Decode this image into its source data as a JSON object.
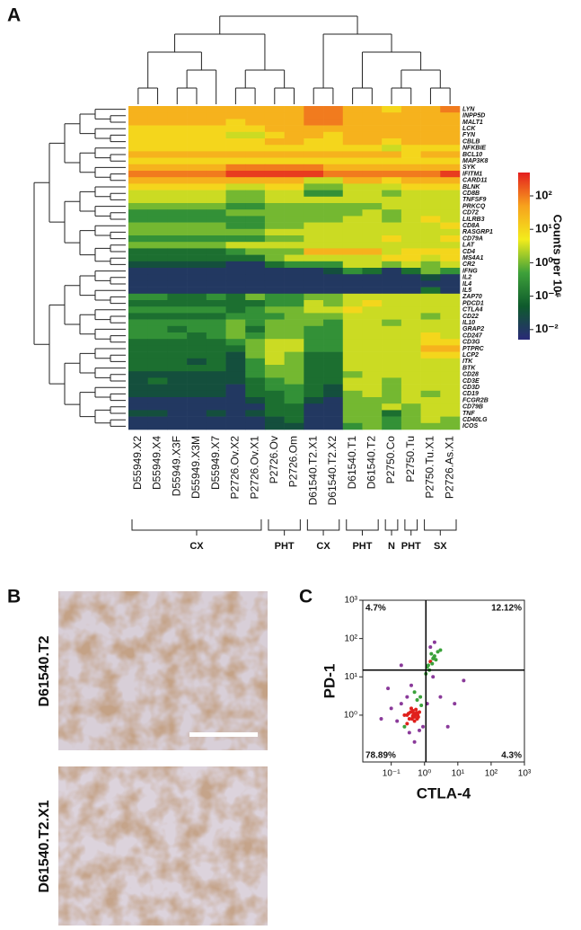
{
  "chart_data": [
    {
      "type": "heatmap",
      "panel": "A",
      "columns": [
        "D55949.X2",
        "D55949.X4",
        "D55949.X3F",
        "D55949.X3M",
        "D55949.X7",
        "P2726.Ov.X2",
        "P2726.Ov.X1",
        "P2726.Ov",
        "P2726.Om",
        "D61540.T2.X1",
        "D61540.T2.X2",
        "D61540.T1",
        "D61540.T2",
        "P2750.Co",
        "P2750.Tu",
        "P2750.Tu.X1",
        "P2726.As.X1"
      ],
      "rows": [
        "LYN",
        "INPP5D",
        "MALT1",
        "LCK",
        "FYN",
        "CBLB",
        "NFKBIE",
        "BCL10",
        "MAP3K8",
        "SYK",
        "IFITM1",
        "CARD11",
        "BLNK",
        "CD8B",
        "TNFSF9",
        "PRKCQ",
        "CD72",
        "LILRB3",
        "CD8A",
        "RASGRP1",
        "CD79A",
        "LAT",
        "CD4",
        "MS4A1",
        "CR2",
        "IFNG",
        "IL2",
        "IL4",
        "IL5",
        "ZAP70",
        "PDCD1",
        "CTLA4",
        "CD22",
        "IL10",
        "GRAP2",
        "CD247",
        "CD3G",
        "PTPRC",
        "LCP2",
        "ITK",
        "BTK",
        "CD28",
        "CD3E",
        "CD3D",
        "CD19",
        "FCGR2B",
        "CD79B",
        "TNF",
        "CD40LG",
        "ICOS"
      ],
      "values": [
        [
          30,
          30,
          30,
          30,
          30,
          30,
          30,
          30,
          30,
          100,
          100,
          30,
          30,
          10,
          30,
          30,
          100
        ],
        [
          30,
          30,
          30,
          30,
          30,
          30,
          30,
          30,
          30,
          100,
          100,
          30,
          30,
          30,
          30,
          30,
          30
        ],
        [
          30,
          30,
          30,
          30,
          30,
          10,
          30,
          30,
          30,
          100,
          100,
          30,
          30,
          30,
          30,
          30,
          30
        ],
        [
          10,
          10,
          10,
          10,
          10,
          10,
          10,
          30,
          30,
          30,
          30,
          30,
          30,
          30,
          30,
          30,
          30
        ],
        [
          10,
          10,
          10,
          10,
          10,
          3,
          3,
          10,
          30,
          30,
          10,
          30,
          30,
          30,
          30,
          30,
          30
        ],
        [
          10,
          10,
          10,
          10,
          10,
          10,
          10,
          30,
          30,
          10,
          10,
          30,
          30,
          10,
          30,
          30,
          30
        ],
        [
          10,
          10,
          10,
          10,
          10,
          10,
          10,
          10,
          10,
          10,
          10,
          10,
          10,
          3,
          10,
          10,
          10
        ],
        [
          30,
          30,
          30,
          30,
          30,
          30,
          30,
          30,
          30,
          30,
          30,
          30,
          30,
          30,
          10,
          30,
          30
        ],
        [
          10,
          10,
          10,
          10,
          10,
          10,
          10,
          10,
          10,
          10,
          10,
          10,
          10,
          10,
          10,
          10,
          10
        ],
        [
          30,
          30,
          30,
          30,
          30,
          100,
          100,
          100,
          100,
          100,
          30,
          30,
          30,
          30,
          30,
          30,
          30
        ],
        [
          100,
          100,
          100,
          100,
          100,
          300,
          300,
          300,
          300,
          300,
          100,
          100,
          100,
          100,
          100,
          100,
          300
        ],
        [
          30,
          30,
          30,
          30,
          30,
          30,
          30,
          30,
          30,
          3,
          3,
          30,
          30,
          10,
          30,
          30,
          30
        ],
        [
          10,
          10,
          10,
          10,
          10,
          3,
          3,
          10,
          10,
          1,
          1,
          3,
          3,
          3,
          10,
          10,
          10
        ],
        [
          3,
          3,
          3,
          3,
          3,
          1,
          1,
          3,
          3,
          0.3,
          0.3,
          3,
          3,
          1,
          3,
          3,
          3
        ],
        [
          3,
          3,
          3,
          3,
          3,
          1,
          1,
          3,
          3,
          3,
          3,
          3,
          3,
          3,
          3,
          3,
          3
        ],
        [
          1,
          1,
          1,
          1,
          1,
          0.3,
          0.3,
          1,
          1,
          1,
          1,
          1,
          1,
          3,
          3,
          3,
          3
        ],
        [
          0.3,
          0.3,
          0.3,
          0.3,
          0.3,
          1,
          1,
          1,
          1,
          1,
          1,
          1,
          3,
          1,
          3,
          3,
          3
        ],
        [
          0.3,
          0.3,
          0.3,
          0.3,
          0.3,
          0.3,
          0.3,
          1,
          1,
          1,
          1,
          3,
          3,
          1,
          3,
          10,
          3
        ],
        [
          1,
          1,
          1,
          1,
          1,
          0.3,
          0.3,
          1,
          1,
          3,
          3,
          3,
          3,
          3,
          3,
          3,
          10
        ],
        [
          1,
          1,
          1,
          1,
          1,
          1,
          1,
          3,
          3,
          3,
          3,
          3,
          3,
          3,
          3,
          3,
          3
        ],
        [
          0.3,
          0.3,
          0.3,
          0.3,
          0.3,
          0.3,
          0.3,
          1,
          1,
          3,
          3,
          3,
          3,
          10,
          3,
          3,
          10
        ],
        [
          1,
          1,
          1,
          1,
          1,
          3,
          3,
          3,
          3,
          3,
          3,
          3,
          3,
          3,
          3,
          3,
          3
        ],
        [
          0.1,
          0.1,
          0.1,
          0.1,
          0.1,
          0.3,
          1,
          1,
          1,
          30,
          30,
          30,
          30,
          3,
          10,
          10,
          10
        ],
        [
          0.1,
          0.1,
          0.1,
          0.1,
          0.1,
          0.1,
          0.1,
          1,
          3,
          3,
          3,
          3,
          3,
          10,
          10,
          3,
          10
        ],
        [
          0.03,
          0.03,
          0.03,
          0.03,
          0.03,
          0.01,
          0.01,
          0.1,
          0.3,
          0.3,
          0.3,
          3,
          3,
          1,
          3,
          1,
          3
        ],
        [
          0.01,
          0.01,
          0.01,
          0.01,
          0.01,
          0.01,
          0.01,
          0.01,
          0.01,
          0.01,
          0.03,
          0.3,
          0.1,
          0.01,
          0.1,
          1,
          0.3
        ],
        [
          0.01,
          0.01,
          0.01,
          0.01,
          0.01,
          0.01,
          0.01,
          0.01,
          0.01,
          0.01,
          0.01,
          0.01,
          0.01,
          0.01,
          0.01,
          0.03,
          0.01
        ],
        [
          0.01,
          0.01,
          0.01,
          0.01,
          0.01,
          0.01,
          0.01,
          0.01,
          0.01,
          0.01,
          0.01,
          0.01,
          0.01,
          0.01,
          0.01,
          0.01,
          0.01
        ],
        [
          0.01,
          0.01,
          0.01,
          0.01,
          0.01,
          0.01,
          0.01,
          0.01,
          0.01,
          0.01,
          0.01,
          0.01,
          0.01,
          0.01,
          0.01,
          0.1,
          0.01
        ],
        [
          0.3,
          0.3,
          0.1,
          0.1,
          0.3,
          0.1,
          1,
          0.3,
          0.3,
          1,
          1,
          3,
          3,
          3,
          3,
          3,
          3
        ],
        [
          0.1,
          0.1,
          0.1,
          0.1,
          0.1,
          0.1,
          0.1,
          0.3,
          0.3,
          3,
          1,
          3,
          10,
          3,
          3,
          3,
          3
        ],
        [
          0.3,
          0.3,
          0.3,
          0.3,
          0.3,
          0.1,
          0.3,
          1,
          1,
          3,
          3,
          10,
          3,
          3,
          3,
          3,
          3
        ],
        [
          0.1,
          0.1,
          0.1,
          0.1,
          0.1,
          0.3,
          0.3,
          0.3,
          1,
          1,
          1,
          3,
          3,
          3,
          3,
          1,
          3
        ],
        [
          0.3,
          0.3,
          0.3,
          0.3,
          0.3,
          1,
          0.3,
          1,
          1,
          1,
          0.3,
          3,
          3,
          1,
          3,
          3,
          3
        ],
        [
          0.3,
          0.3,
          0.1,
          0.3,
          0.3,
          1,
          0.1,
          1,
          1,
          0.3,
          0.3,
          3,
          3,
          3,
          3,
          3,
          3
        ],
        [
          0.3,
          0.3,
          0.3,
          0.1,
          0.3,
          1,
          0.3,
          1,
          1,
          0.3,
          0.3,
          3,
          3,
          3,
          3,
          10,
          3
        ],
        [
          0.1,
          0.1,
          0.1,
          0.1,
          0.1,
          0.3,
          1,
          3,
          3,
          0.3,
          0.3,
          3,
          3,
          3,
          3,
          10,
          10
        ],
        [
          0.1,
          0.1,
          0.1,
          0.1,
          0.1,
          0.1,
          1,
          3,
          3,
          0.3,
          0.3,
          3,
          3,
          3,
          3,
          30,
          30
        ],
        [
          0.1,
          0.1,
          0.1,
          0.1,
          0.1,
          0.03,
          1,
          3,
          1,
          0.1,
          0.1,
          3,
          3,
          3,
          3,
          10,
          10
        ],
        [
          0.1,
          0.1,
          0.1,
          0.03,
          0.1,
          0.03,
          0.3,
          3,
          1,
          0.1,
          0.1,
          3,
          3,
          3,
          3,
          3,
          3
        ],
        [
          0.1,
          0.1,
          0.1,
          0.1,
          0.1,
          0.03,
          0.3,
          1,
          1,
          0.1,
          0.1,
          3,
          3,
          3,
          3,
          3,
          3
        ],
        [
          0.03,
          0.03,
          0.03,
          0.03,
          0.03,
          0.03,
          0.3,
          1,
          1,
          0.1,
          0.1,
          1,
          3,
          3,
          3,
          3,
          3
        ],
        [
          0.03,
          0.1,
          0.03,
          0.03,
          0.03,
          0.03,
          0.1,
          0.3,
          1,
          0.1,
          0.1,
          3,
          3,
          1,
          3,
          3,
          3
        ],
        [
          0.03,
          0.03,
          0.03,
          0.03,
          0.03,
          0.01,
          0.1,
          0.3,
          0.3,
          0.1,
          0.03,
          3,
          3,
          1,
          3,
          3,
          3
        ],
        [
          0.03,
          0.03,
          0.03,
          0.03,
          0.03,
          0.01,
          0.1,
          0.1,
          0.3,
          0.1,
          0.03,
          1,
          3,
          1,
          3,
          1,
          3
        ],
        [
          0.01,
          0.01,
          0.01,
          0.01,
          0.01,
          0.01,
          0.03,
          0.1,
          0.3,
          0.03,
          0.01,
          1,
          1,
          1,
          3,
          3,
          3
        ],
        [
          0.01,
          0.01,
          0.01,
          0.01,
          0.01,
          0.01,
          0.01,
          0.1,
          0.1,
          0.01,
          0.01,
          1,
          1,
          3,
          1,
          3,
          3
        ],
        [
          0.03,
          0.03,
          0.01,
          0.01,
          0.03,
          0.01,
          0.03,
          0.1,
          0.1,
          0.01,
          0.01,
          1,
          1,
          0.1,
          1,
          3,
          3
        ],
        [
          0.01,
          0.01,
          0.01,
          0.01,
          0.01,
          0.01,
          0.01,
          0.03,
          0.1,
          0.01,
          0.01,
          1,
          1,
          0.3,
          1,
          3,
          1
        ],
        [
          0.01,
          0.01,
          0.01,
          0.01,
          0.01,
          0.01,
          0.01,
          0.03,
          0.03,
          0.01,
          0.01,
          0.3,
          1,
          0.3,
          1,
          1,
          1
        ]
      ],
      "clim": [
        0.005,
        500
      ],
      "cticks": [
        {
          "value": 100,
          "label": "10²"
        },
        {
          "value": 10,
          "label": "10¹"
        },
        {
          "value": 1,
          "label": "10⁰"
        },
        {
          "value": 0.1,
          "label": "10⁻¹"
        },
        {
          "value": 0.01,
          "label": "10⁻²"
        }
      ],
      "colorbar_title": "Counts per 10⁶",
      "log_scale": true,
      "colormap": [
        "#2a2a78",
        "#0e5a2c",
        "#3ea13a",
        "#f3ec1c",
        "#f7a21d",
        "#e41f1f"
      ],
      "groups": [
        {
          "label": "CX",
          "size": 7
        },
        {
          "label": "PHT",
          "size": 2
        },
        {
          "label": "CX",
          "size": 2
        },
        {
          "label": "PHT",
          "size": 2
        },
        {
          "label": "N",
          "size": 1
        },
        {
          "label": "PHT",
          "size": 1
        },
        {
          "label": "SX",
          "size": 2
        }
      ]
    },
    {
      "type": "scatter",
      "panel": "C",
      "xlabel": "CTLA-4",
      "ylabel": "PD-1",
      "log_x": true,
      "log_y": true,
      "xlim": [
        0.014,
        1000
      ],
      "ylim": [
        0.06,
        1000
      ],
      "xticks": [
        {
          "value": 0.1,
          "label": "10⁻¹"
        },
        {
          "value": 1,
          "label": "10⁰"
        },
        {
          "value": 10,
          "label": "10¹"
        },
        {
          "value": 100,
          "label": "10²"
        },
        {
          "value": 1000,
          "label": "10³"
        }
      ],
      "yticks": [
        {
          "value": 1,
          "label": "10⁰"
        },
        {
          "value": 10,
          "label": "10¹"
        },
        {
          "value": 100,
          "label": "10²"
        },
        {
          "value": 1000,
          "label": "10³"
        }
      ],
      "x": [
        0.3,
        0.4,
        0.5,
        0.6,
        0.35,
        0.45,
        0.55,
        0.5,
        0.4,
        0.6,
        0.7,
        0.3,
        0.25,
        0.5,
        0.45,
        0.55,
        0.65,
        0.38,
        0.42,
        0.52,
        0.2,
        0.15,
        0.8,
        0.9,
        0.3,
        0.6,
        0.1,
        0.7,
        0.5,
        0.35,
        0.48,
        0.44,
        0.58,
        0.62,
        0.33,
        1.2,
        0.05,
        0.25,
        0.75,
        0.4,
        1.5,
        1.8,
        1.3,
        2,
        1.6,
        1.4,
        2.2,
        1.7,
        1.2,
        2.5,
        1.9,
        1.1,
        3,
        1.5,
        1.8,
        3,
        8,
        0.2,
        5,
        0.08,
        2,
        15,
        0.5
      ],
      "values": [
        1,
        1.2,
        0.9,
        1.1,
        0.8,
        1.3,
        1,
        0.7,
        1.5,
        0.8,
        1.2,
        0.6,
        1,
        1.1,
        0.9,
        1.4,
        0.9,
        1.2,
        0.8,
        1,
        2,
        0.7,
        1.8,
        0.5,
        3,
        2.5,
        1.5,
        0.4,
        4,
        0.35,
        1.05,
        0.95,
        1.15,
        1,
        1.1,
        2,
        0.8,
        0.5,
        3,
        6,
        25,
        30,
        20,
        35,
        40,
        15,
        28,
        22,
        18,
        45,
        32,
        12,
        50,
        60,
        10,
        3,
        2,
        20,
        0.5,
        5,
        80,
        8,
        0.2
      ],
      "density_colors": [
        "#8a3a9a",
        "#3aa23a",
        "#e0201c"
      ],
      "gate_x": 1.1,
      "gate_y": 15,
      "annotations": [
        {
          "text": "4.7%",
          "corner": "upper-left"
        },
        {
          "text": "12.12%",
          "corner": "upper-right"
        },
        {
          "text": "78.89%",
          "corner": "lower-left"
        },
        {
          "text": "4.3%",
          "corner": "lower-right"
        }
      ]
    }
  ],
  "panel_b": {
    "label": "B",
    "images": [
      "D61540.T2",
      "D61540.T2.X1"
    ]
  }
}
